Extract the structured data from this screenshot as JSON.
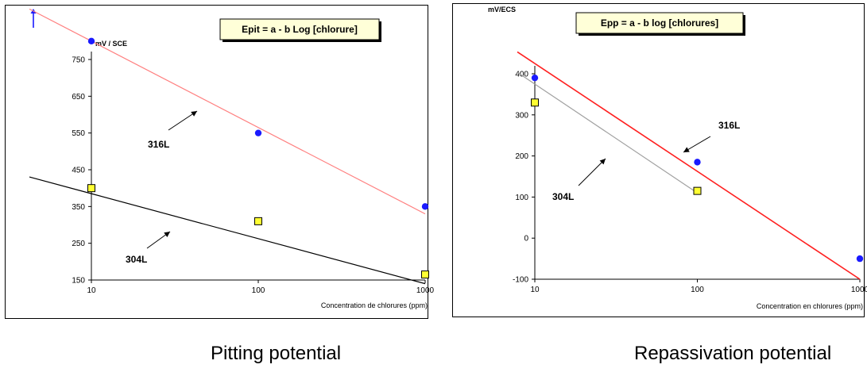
{
  "captions": {
    "left": "Pitting potential",
    "right": "Repassivation potential"
  },
  "chart_data": [
    {
      "type": "scatter",
      "title": "",
      "formula_box": "Epit = a - b Log [chlorure]",
      "ylabel": "mV / SCE",
      "xlabel": "Concentration de chlorures (ppm)",
      "x_scale": "log",
      "xlim": [
        10,
        1000
      ],
      "ylim": [
        150,
        800
      ],
      "x_ticks": [
        10,
        100,
        1000
      ],
      "x_tick_labels": [
        "10",
        "100",
        "1000"
      ],
      "y_ticks": [
        150,
        250,
        350,
        450,
        550,
        650,
        750
      ],
      "y_tick_labels": [
        "150",
        "250",
        "350",
        "450",
        "550",
        "650",
        "750"
      ],
      "grid": false,
      "series": [
        {
          "name": "316L",
          "marker": "circle",
          "marker_color": "#1a1aff",
          "line_color": "#ff8080",
          "points": [
            {
              "x": 10,
              "y": 800
            },
            {
              "x": 100,
              "y": 550
            },
            {
              "x": 1000,
              "y": 350
            }
          ],
          "fit_line": [
            {
              "x": 10,
              "y": 800
            },
            {
              "x": 1000,
              "y": 330
            }
          ]
        },
        {
          "name": "304L",
          "marker": "square",
          "marker_color": "#ffff33",
          "line_color": "#000000",
          "points": [
            {
              "x": 10,
              "y": 400
            },
            {
              "x": 100,
              "y": 310
            },
            {
              "x": 1000,
              "y": 165
            }
          ],
          "fit_line": [
            {
              "x": 10,
              "y": 385
            },
            {
              "x": 1000,
              "y": 140
            }
          ]
        }
      ]
    },
    {
      "type": "scatter",
      "title": "",
      "formula_box": "Epp = a - b log [chlorures]",
      "ylabel": "mV/ECS",
      "xlabel": "Concentration en chlorures (ppm)",
      "x_scale": "log",
      "xlim": [
        10,
        1000
      ],
      "ylim": [
        -100,
        400
      ],
      "x_ticks": [
        10,
        100,
        1000
      ],
      "x_tick_labels": [
        "10",
        "100",
        "1000"
      ],
      "y_ticks": [
        -100,
        0,
        100,
        200,
        300,
        400
      ],
      "y_tick_labels": [
        "-100",
        "0",
        "100",
        "200",
        "300",
        "400"
      ],
      "grid": false,
      "series": [
        {
          "name": "316L",
          "marker": "circle",
          "marker_color": "#1a1aff",
          "line_color": "#ff2020",
          "points": [
            {
              "x": 10,
              "y": 390
            },
            {
              "x": 100,
              "y": 185
            },
            {
              "x": 1000,
              "y": -50
            }
          ],
          "fit_line": [
            {
              "x": 10,
              "y": 425
            },
            {
              "x": 1000,
              "y": -100
            }
          ]
        },
        {
          "name": "304L",
          "marker": "square",
          "marker_color": "#ffff33",
          "line_color": "#a0a0a0",
          "points": [
            {
              "x": 10,
              "y": 330
            },
            {
              "x": 100,
              "y": 115
            }
          ],
          "fit_line": [
            {
              "x": 10,
              "y": 375
            },
            {
              "x": 100,
              "y": 110
            }
          ]
        }
      ]
    }
  ]
}
